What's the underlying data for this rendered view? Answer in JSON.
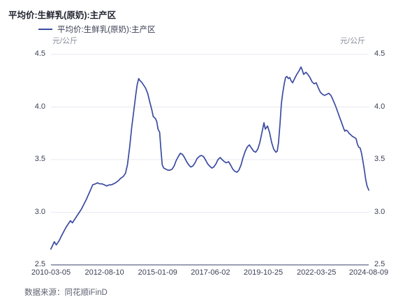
{
  "title": "平均价:生鲜乳(原奶):主产区",
  "legend": {
    "marker_icon": "line-swatch",
    "label": "平均价:生鲜乳(原奶):主产区"
  },
  "y_axis": {
    "unit_left": "元/公斤",
    "unit_right": "元/公斤"
  },
  "footer": {
    "source": "数据来源：同花顺iFinD"
  },
  "colors": {
    "line": "#3a4ba0",
    "grid": "#e8e9f1",
    "axis": "#9aa0b2",
    "tick_text": "#3b3f54",
    "unit_text": "#8a8f9e",
    "title_text": "#20222e",
    "footer_text": "#5d6370"
  },
  "chart_data": {
    "type": "line",
    "title": "平均价:生鲜乳(原奶):主产区",
    "ylabel": "元/公斤",
    "ylim": [
      2.5,
      4.5
    ],
    "y_ticks": [
      "4.5",
      "4.0",
      "3.5",
      "3.0",
      "2.5"
    ],
    "x_tick_labels": [
      "2010-03-05",
      "2012-08-10",
      "2015-01-09",
      "2017-06-02",
      "2019-10-25",
      "2022-03-25",
      "2024-08-09"
    ],
    "x_range": [
      "2010-03-05",
      "2024-08-09"
    ],
    "grid": true,
    "legend_position": "top-left",
    "series": [
      {
        "name": "平均价:生鲜乳(原奶):主产区",
        "points": [
          [
            2010.17,
            2.65
          ],
          [
            2010.33,
            2.72
          ],
          [
            2010.42,
            2.69
          ],
          [
            2010.55,
            2.73
          ],
          [
            2010.64,
            2.77
          ],
          [
            2010.87,
            2.86
          ],
          [
            2011.06,
            2.92
          ],
          [
            2011.15,
            2.9
          ],
          [
            2011.34,
            2.96
          ],
          [
            2011.56,
            3.03
          ],
          [
            2011.78,
            3.12
          ],
          [
            2011.97,
            3.21
          ],
          [
            2012.07,
            3.26
          ],
          [
            2012.2,
            3.27
          ],
          [
            2012.29,
            3.28
          ],
          [
            2012.38,
            3.27
          ],
          [
            2012.48,
            3.27
          ],
          [
            2012.61,
            3.26
          ],
          [
            2012.7,
            3.25
          ],
          [
            2012.83,
            3.26
          ],
          [
            2012.92,
            3.26
          ],
          [
            2013.02,
            3.27
          ],
          [
            2013.11,
            3.28
          ],
          [
            2013.24,
            3.3
          ],
          [
            2013.33,
            3.32
          ],
          [
            2013.46,
            3.34
          ],
          [
            2013.56,
            3.37
          ],
          [
            2013.65,
            3.45
          ],
          [
            2013.75,
            3.62
          ],
          [
            2013.84,
            3.8
          ],
          [
            2013.94,
            3.97
          ],
          [
            2014.03,
            4.12
          ],
          [
            2014.09,
            4.21
          ],
          [
            2014.16,
            4.27
          ],
          [
            2014.22,
            4.25
          ],
          [
            2014.28,
            4.24
          ],
          [
            2014.38,
            4.21
          ],
          [
            2014.47,
            4.18
          ],
          [
            2014.57,
            4.13
          ],
          [
            2014.66,
            4.05
          ],
          [
            2014.76,
            3.97
          ],
          [
            2014.82,
            3.91
          ],
          [
            2014.92,
            3.89
          ],
          [
            2014.98,
            3.86
          ],
          [
            2015.04,
            3.79
          ],
          [
            2015.11,
            3.76
          ],
          [
            2015.17,
            3.6
          ],
          [
            2015.23,
            3.45
          ],
          [
            2015.3,
            3.42
          ],
          [
            2015.39,
            3.41
          ],
          [
            2015.49,
            3.4
          ],
          [
            2015.58,
            3.4
          ],
          [
            2015.68,
            3.41
          ],
          [
            2015.77,
            3.44
          ],
          [
            2015.86,
            3.49
          ],
          [
            2015.96,
            3.53
          ],
          [
            2016.05,
            3.56
          ],
          [
            2016.15,
            3.55
          ],
          [
            2016.24,
            3.52
          ],
          [
            2016.34,
            3.48
          ],
          [
            2016.43,
            3.45
          ],
          [
            2016.53,
            3.43
          ],
          [
            2016.62,
            3.44
          ],
          [
            2016.72,
            3.47
          ],
          [
            2016.81,
            3.51
          ],
          [
            2016.91,
            3.53
          ],
          [
            2017.0,
            3.54
          ],
          [
            2017.1,
            3.53
          ],
          [
            2017.19,
            3.5
          ],
          [
            2017.29,
            3.46
          ],
          [
            2017.38,
            3.44
          ],
          [
            2017.48,
            3.42
          ],
          [
            2017.57,
            3.43
          ],
          [
            2017.67,
            3.46
          ],
          [
            2017.76,
            3.5
          ],
          [
            2017.86,
            3.52
          ],
          [
            2017.95,
            3.5
          ],
          [
            2018.05,
            3.48
          ],
          [
            2018.14,
            3.47
          ],
          [
            2018.24,
            3.48
          ],
          [
            2018.33,
            3.45
          ],
          [
            2018.43,
            3.41
          ],
          [
            2018.52,
            3.39
          ],
          [
            2018.62,
            3.38
          ],
          [
            2018.71,
            3.4
          ],
          [
            2018.81,
            3.45
          ],
          [
            2018.9,
            3.52
          ],
          [
            2019.0,
            3.58
          ],
          [
            2019.09,
            3.62
          ],
          [
            2019.19,
            3.64
          ],
          [
            2019.28,
            3.61
          ],
          [
            2019.38,
            3.58
          ],
          [
            2019.47,
            3.57
          ],
          [
            2019.57,
            3.6
          ],
          [
            2019.66,
            3.66
          ],
          [
            2019.76,
            3.76
          ],
          [
            2019.85,
            3.85
          ],
          [
            2019.91,
            3.79
          ],
          [
            2020.01,
            3.82
          ],
          [
            2020.1,
            3.76
          ],
          [
            2020.2,
            3.66
          ],
          [
            2020.29,
            3.6
          ],
          [
            2020.39,
            3.57
          ],
          [
            2020.45,
            3.58
          ],
          [
            2020.51,
            3.66
          ],
          [
            2020.58,
            3.85
          ],
          [
            2020.64,
            4.03
          ],
          [
            2020.7,
            4.13
          ],
          [
            2020.77,
            4.22
          ],
          [
            2020.83,
            4.28
          ],
          [
            2020.89,
            4.29
          ],
          [
            2020.96,
            4.27
          ],
          [
            2021.02,
            4.28
          ],
          [
            2021.08,
            4.25
          ],
          [
            2021.15,
            4.23
          ],
          [
            2021.24,
            4.27
          ],
          [
            2021.34,
            4.31
          ],
          [
            2021.43,
            4.34
          ],
          [
            2021.53,
            4.38
          ],
          [
            2021.59,
            4.35
          ],
          [
            2021.65,
            4.31
          ],
          [
            2021.75,
            4.33
          ],
          [
            2021.84,
            4.31
          ],
          [
            2021.94,
            4.28
          ],
          [
            2022.03,
            4.24
          ],
          [
            2022.13,
            4.22
          ],
          [
            2022.22,
            4.23
          ],
          [
            2022.32,
            4.18
          ],
          [
            2022.41,
            4.14
          ],
          [
            2022.51,
            4.12
          ],
          [
            2022.6,
            4.11
          ],
          [
            2022.7,
            4.12
          ],
          [
            2022.79,
            4.13
          ],
          [
            2022.89,
            4.11
          ],
          [
            2022.98,
            4.07
          ],
          [
            2023.08,
            4.02
          ],
          [
            2023.17,
            3.97
          ],
          [
            2023.27,
            3.91
          ],
          [
            2023.36,
            3.86
          ],
          [
            2023.46,
            3.8
          ],
          [
            2023.52,
            3.77
          ],
          [
            2023.58,
            3.78
          ],
          [
            2023.65,
            3.77
          ],
          [
            2023.71,
            3.75
          ],
          [
            2023.77,
            3.74
          ],
          [
            2023.87,
            3.72
          ],
          [
            2023.96,
            3.71
          ],
          [
            2024.03,
            3.7
          ],
          [
            2024.09,
            3.65
          ],
          [
            2024.15,
            3.62
          ],
          [
            2024.22,
            3.61
          ],
          [
            2024.28,
            3.56
          ],
          [
            2024.34,
            3.49
          ],
          [
            2024.41,
            3.4
          ],
          [
            2024.47,
            3.31
          ],
          [
            2024.53,
            3.25
          ],
          [
            2024.61,
            3.21
          ]
        ]
      }
    ]
  }
}
